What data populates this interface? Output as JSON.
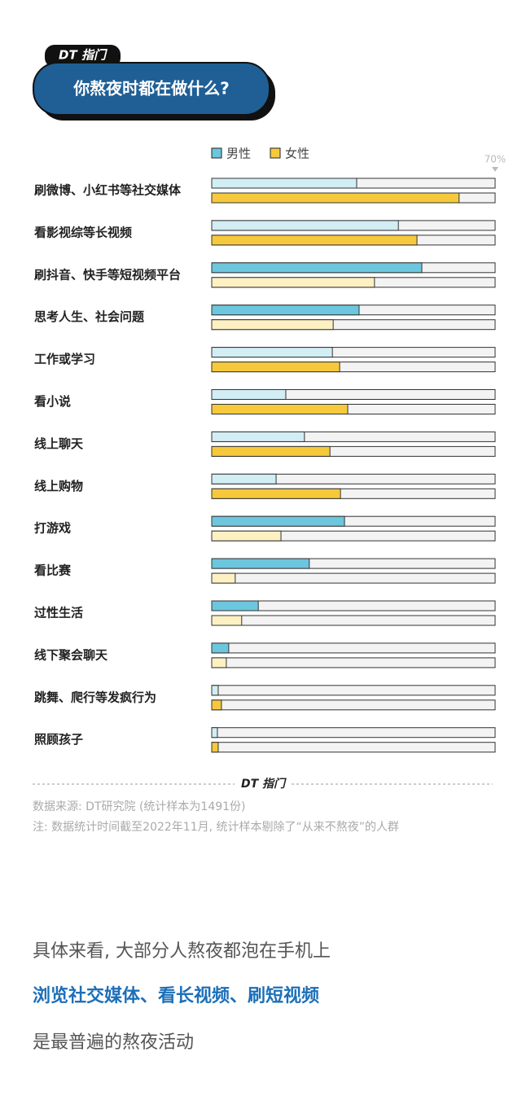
{
  "brand": "DT 指门",
  "chart_data": {
    "type": "bar",
    "orientation": "horizontal",
    "title": "你熬夜时都在做什么?",
    "categories": [
      "刷微博、小红书等社交媒体",
      "看影视综等长视频",
      "刷抖音、快手等短视频平台",
      "思考人生、社会问题",
      "工作或学习",
      "看小说",
      "线上聊天",
      "线上购物",
      "打游戏",
      "看比赛",
      "过性生活",
      "线下聚会聊天",
      "跳舞、爬行等发疯行为",
      "照顾孩子"
    ],
    "series": [
      {
        "name": "男性",
        "color": "#6cc6de",
        "muted_color": "#d2edf4",
        "values": [
          35.8,
          46.1,
          51.9,
          36.4,
          29.8,
          18.3,
          22.9,
          15.9,
          32.8,
          24.1,
          11.5,
          4.2,
          1.6,
          1.4
        ]
      },
      {
        "name": "女性",
        "color": "#f6c93c",
        "muted_color": "#fdf1c4",
        "values": [
          61.1,
          50.7,
          40.2,
          30.0,
          31.6,
          33.6,
          29.2,
          31.8,
          17.1,
          5.8,
          7.4,
          3.6,
          2.4,
          1.6
        ]
      }
    ],
    "xlim": [
      0,
      70
    ],
    "xticks": [
      {
        "value": 70,
        "label": "70%"
      }
    ],
    "highlight_larger": true
  },
  "footer": {
    "source": "数据来源: DT研究院 (统计样本为1491份)",
    "note": "注: 数据统计时间截至2022年11月, 统计样本剔除了“从来不熬夜”的人群"
  },
  "body": [
    "具体来看, 大部分人熬夜都泡在手机上",
    "浏览社交媒体、看长视频、刷短视频",
    "是最普遍的熬夜活动"
  ]
}
